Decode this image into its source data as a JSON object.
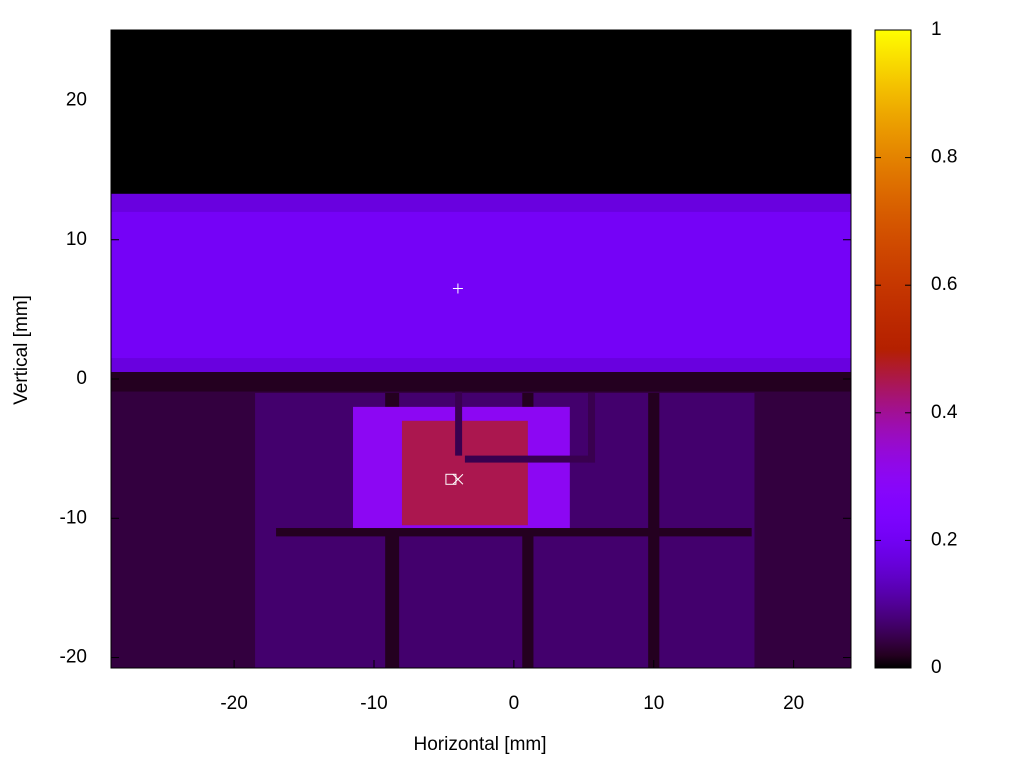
{
  "chart_data": {
    "type": "heatmap",
    "xlabel": "Horizontal [mm]",
    "ylabel": "Vertical [mm]",
    "xlim": [
      -28.8,
      24.1
    ],
    "ylim": [
      -20.75,
      25.06
    ],
    "xticks": [
      -20,
      -10,
      0,
      10,
      20
    ],
    "yticks": [
      -20,
      -10,
      0,
      10,
      20
    ],
    "cblim": [
      0,
      1
    ],
    "cbticks": [
      0,
      0.2,
      0.4,
      0.6,
      0.8,
      1
    ],
    "palette": [
      7,
      5,
      15
    ],
    "regions": [
      {
        "x": [
          -28.8,
          24.1
        ],
        "y": [
          -20.75,
          25.06
        ],
        "value": 0
      },
      {
        "x": [
          -28.8,
          24.1
        ],
        "y": [
          -20.75,
          0
        ],
        "value": 0.04
      },
      {
        "x": [
          -18.5,
          17.2
        ],
        "y": [
          -20.75,
          -1
        ],
        "value": 0.07
      },
      {
        "x": [
          -28.8,
          24.1
        ],
        "y": [
          0.5,
          13.3
        ],
        "value": 0.17
      },
      {
        "x": [
          -28.8,
          24.1
        ],
        "y": [
          1.5,
          12
        ],
        "value": 0.21
      },
      {
        "x": [
          -28.8,
          24.1
        ],
        "y": [
          -0.9,
          0.5
        ],
        "value": 0.02
      },
      {
        "x": [
          -9.2,
          -8.2
        ],
        "y": [
          -20.75,
          -1
        ],
        "value": 0.02
      },
      {
        "x": [
          0.6,
          1.4
        ],
        "y": [
          -20.75,
          -1
        ],
        "value": 0.02
      },
      {
        "x": [
          9.6,
          10.4
        ],
        "y": [
          -20.75,
          -1
        ],
        "value": 0.02
      },
      {
        "x": [
          -11.5,
          4
        ],
        "y": [
          -11,
          -2
        ],
        "value": 0.3
      },
      {
        "x": [
          -8,
          1
        ],
        "y": [
          -10.5,
          -3
        ],
        "value": 0.45
      },
      {
        "x": [
          -17,
          17
        ],
        "y": [
          -11.3,
          -10.7
        ],
        "value": 0.02
      },
      {
        "x": [
          -3.5,
          5.8
        ],
        "y": [
          -6,
          -5.5
        ],
        "value": 0.05
      },
      {
        "x": [
          5.3,
          5.8
        ],
        "y": [
          -6,
          -1
        ],
        "value": 0.05
      },
      {
        "x": [
          -4.2,
          -3.7
        ],
        "y": [
          -5.5,
          -0.9
        ],
        "value": 0.05
      }
    ],
    "markers": [
      {
        "x": -4,
        "y": 6.5,
        "symbol": "plus"
      },
      {
        "x": -4.5,
        "y": -7.2,
        "symbol": "square"
      },
      {
        "x": -4,
        "y": -7.2,
        "symbol": "cross"
      }
    ]
  }
}
